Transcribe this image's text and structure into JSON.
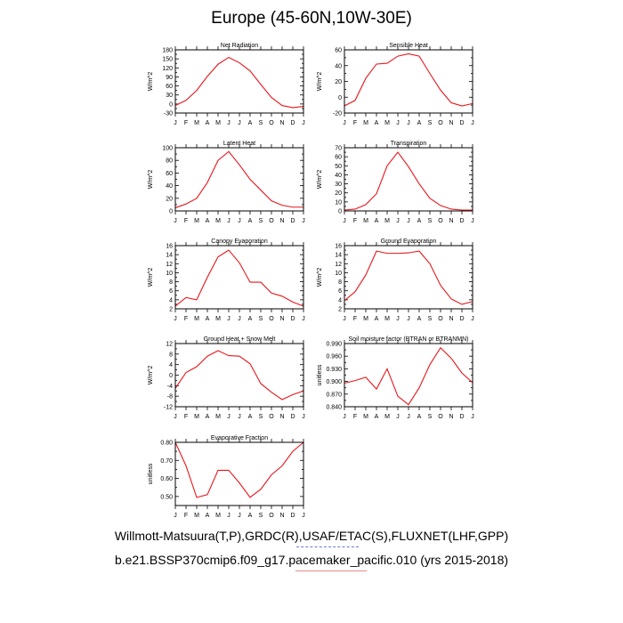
{
  "page": {
    "title": "Europe (45-60N,10W-30E)",
    "footer_line1": "Willmott-Matsuura(T,P),GRDC(R),USAF/ETAC(S),FLUXNET(LHF,GPP)",
    "footer_line2": "b.e21.BSSP370cmip6.f09_g17.pacemaker_pacific.010 (yrs 2015-2018)",
    "line_color": "#e8161b"
  },
  "chart_data": [
    {
      "type": "line",
      "title": "Net Radiation",
      "ylabel": "W/m^2",
      "x": [
        "J",
        "F",
        "M",
        "A",
        "M",
        "J",
        "J",
        "A",
        "S",
        "O",
        "N",
        "D",
        "J"
      ],
      "ylim": [
        -30,
        180
      ],
      "yticks": [
        -30,
        -15,
        0,
        15,
        30,
        45,
        60,
        75,
        90,
        105,
        120,
        135,
        150,
        165,
        180
      ],
      "ytick_labels": [
        "-30",
        "",
        "0",
        "",
        "30",
        "",
        "60",
        "",
        "90",
        "",
        "120",
        "",
        "150",
        "",
        "180"
      ],
      "series": [
        {
          "values": [
            -5,
            12,
            45,
            92,
            132,
            155,
            137,
            110,
            65,
            22,
            -5,
            -12,
            -8
          ]
        }
      ]
    },
    {
      "type": "line",
      "title": "Sensible Heat",
      "ylabel": "W/m^2",
      "x": [
        "J",
        "F",
        "M",
        "A",
        "M",
        "J",
        "J",
        "A",
        "S",
        "O",
        "N",
        "D",
        "J"
      ],
      "ylim": [
        -20,
        60
      ],
      "yticks": [
        -20,
        -10,
        0,
        10,
        20,
        30,
        40,
        50,
        60
      ],
      "ytick_labels": [
        "-20",
        "",
        "0",
        "",
        "20",
        "",
        "40",
        "",
        "60"
      ],
      "series": [
        {
          "values": [
            -11,
            -4,
            24,
            42,
            43,
            52,
            55,
            52,
            30,
            9,
            -7,
            -11,
            -8
          ]
        }
      ]
    },
    {
      "type": "line",
      "title": "Latent Heat",
      "ylabel": "W/m^2",
      "x": [
        "J",
        "F",
        "M",
        "A",
        "M",
        "J",
        "J",
        "A",
        "S",
        "O",
        "N",
        "D",
        "J"
      ],
      "ylim": [
        0,
        100
      ],
      "yticks": [
        0,
        10,
        20,
        30,
        40,
        50,
        60,
        70,
        80,
        90,
        100
      ],
      "ytick_labels": [
        "0",
        "",
        "20",
        "",
        "40",
        "",
        "60",
        "",
        "80",
        "",
        "100"
      ],
      "series": [
        {
          "values": [
            5,
            11,
            20,
            45,
            80,
            94,
            73,
            50,
            33,
            16,
            9,
            6,
            6
          ]
        }
      ]
    },
    {
      "type": "line",
      "title": "Transpiration",
      "ylabel": "W/m^2",
      "x": [
        "J",
        "F",
        "M",
        "A",
        "M",
        "J",
        "J",
        "A",
        "S",
        "O",
        "N",
        "D",
        "J"
      ],
      "ylim": [
        0,
        70
      ],
      "yticks": [
        0,
        5,
        10,
        15,
        20,
        25,
        30,
        35,
        40,
        45,
        50,
        55,
        60,
        65,
        70
      ],
      "ytick_labels": [
        "0",
        "",
        "10",
        "",
        "20",
        "",
        "30",
        "",
        "40",
        "",
        "50",
        "",
        "60",
        "",
        "70"
      ],
      "series": [
        {
          "values": [
            1,
            2,
            7,
            19,
            50,
            65,
            49,
            30,
            14,
            6,
            2,
            1,
            1
          ]
        }
      ]
    },
    {
      "type": "line",
      "title": "Canopy Evaporation",
      "ylabel": "W/m^2",
      "x": [
        "J",
        "F",
        "M",
        "A",
        "M",
        "J",
        "J",
        "A",
        "S",
        "O",
        "N",
        "D",
        "J"
      ],
      "ylim": [
        2,
        16
      ],
      "yticks": [
        2,
        3,
        4,
        5,
        6,
        7,
        8,
        9,
        10,
        11,
        12,
        13,
        14,
        15,
        16
      ],
      "ytick_labels": [
        "2",
        "",
        "4",
        "",
        "6",
        "",
        "8",
        "",
        "10",
        "",
        "12",
        "",
        "14",
        "",
        "16"
      ],
      "series": [
        {
          "values": [
            2.6,
            4.5,
            4.0,
            9.0,
            13.5,
            15.0,
            12.2,
            7.9,
            7.9,
            5.5,
            4.8,
            3.5,
            2.6
          ]
        }
      ]
    },
    {
      "type": "line",
      "title": "Ground Evaporation",
      "ylabel": "W/m^2",
      "x": [
        "J",
        "F",
        "M",
        "A",
        "M",
        "J",
        "J",
        "A",
        "S",
        "O",
        "N",
        "D",
        "J"
      ],
      "ylim": [
        2,
        16
      ],
      "yticks": [
        2,
        3,
        4,
        5,
        6,
        7,
        8,
        9,
        10,
        11,
        12,
        13,
        14,
        15,
        16
      ],
      "ytick_labels": [
        "2",
        "",
        "4",
        "",
        "6",
        "",
        "8",
        "",
        "10",
        "",
        "12",
        "",
        "14",
        "",
        "16"
      ],
      "series": [
        {
          "values": [
            3.8,
            5.8,
            9.5,
            14.8,
            14.3,
            14.3,
            14.4,
            14.8,
            12.0,
            7.2,
            4.2,
            3.0,
            3.6
          ]
        }
      ]
    },
    {
      "type": "line",
      "title": "Ground Heat + Snow Melt",
      "ylabel": "W/m^2",
      "x": [
        "J",
        "F",
        "M",
        "A",
        "M",
        "J",
        "J",
        "A",
        "S",
        "O",
        "N",
        "D",
        "J"
      ],
      "ylim": [
        -12,
        12
      ],
      "yticks": [
        -12,
        -10,
        -8,
        -6,
        -4,
        -2,
        0,
        2,
        4,
        6,
        8,
        10,
        12
      ],
      "ytick_labels": [
        "-12",
        "",
        "-8",
        "",
        "-4",
        "",
        "0",
        "",
        "4",
        "",
        "8",
        "",
        "12"
      ],
      "series": [
        {
          "values": [
            -5,
            1,
            3.2,
            7.2,
            9.3,
            7.4,
            7.2,
            4.3,
            -3.2,
            -6.5,
            -9.3,
            -7.4,
            -6.0
          ]
        }
      ]
    },
    {
      "type": "line",
      "title": "Soil moisture factor (BTRAN or BTRANMN)",
      "ylabel": "unitless",
      "x": [
        "J",
        "F",
        "M",
        "A",
        "M",
        "J",
        "J",
        "A",
        "S",
        "O",
        "N",
        "D",
        "J"
      ],
      "ylim": [
        0.84,
        0.99
      ],
      "yticks": [
        0.84,
        0.855,
        0.87,
        0.885,
        0.9,
        0.915,
        0.93,
        0.945,
        0.96,
        0.975,
        0.99
      ],
      "ytick_labels": [
        "0.840",
        "",
        "0.870",
        "",
        "0.900",
        "",
        "0.930",
        "",
        "0.960",
        "",
        "0.990"
      ],
      "series": [
        {
          "values": [
            0.896,
            0.902,
            0.91,
            0.882,
            0.93,
            0.865,
            0.845,
            0.885,
            0.94,
            0.98,
            0.955,
            0.92,
            0.897
          ]
        }
      ]
    },
    {
      "type": "line",
      "title": "Evaporative Fraction",
      "ylabel": "unitless",
      "x": [
        "J",
        "F",
        "M",
        "A",
        "M",
        "J",
        "J",
        "A",
        "S",
        "O",
        "N",
        "D",
        "J"
      ],
      "ylim": [
        0.45,
        0.8
      ],
      "yticks": [
        0.45,
        0.5,
        0.55,
        0.6,
        0.65,
        0.7,
        0.75,
        0.8
      ],
      "ytick_labels": [
        "",
        "0.50",
        "",
        "0.60",
        "",
        "0.70",
        "",
        "0.80"
      ],
      "series": [
        {
          "values": [
            0.8,
            0.67,
            0.495,
            0.51,
            0.645,
            0.645,
            0.575,
            0.495,
            0.54,
            0.62,
            0.67,
            0.75,
            0.8
          ]
        }
      ]
    }
  ]
}
